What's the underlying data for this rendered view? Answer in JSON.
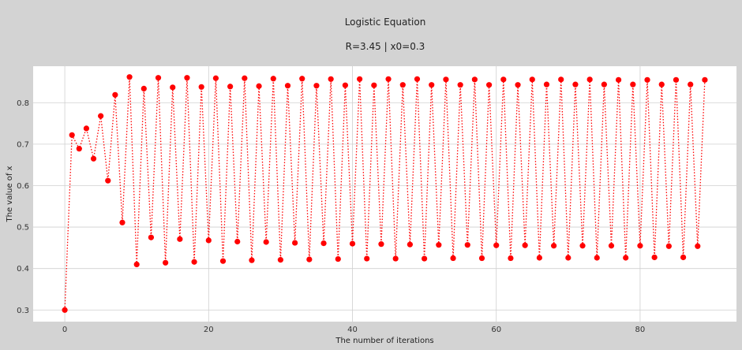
{
  "chart_data": {
    "type": "line",
    "title": "Logistic Equation",
    "subtitle": "R=3.45  |  x0=0.3",
    "xlabel": "The number of iterations",
    "ylabel": "The value of x",
    "xlim": [
      -4.4,
      93.4
    ],
    "ylim": [
      0.272,
      0.888
    ],
    "xticks": [
      0,
      20,
      40,
      60,
      80
    ],
    "yticks": [
      0.3,
      0.4,
      0.5,
      0.6,
      0.7,
      0.8
    ],
    "grid": true,
    "line_style": "dotted",
    "marker": "circle",
    "series_color": "#ff0000",
    "x": [
      0,
      1,
      2,
      3,
      4,
      5,
      6,
      7,
      8,
      9,
      10,
      11,
      12,
      13,
      14,
      15,
      16,
      17,
      18,
      19,
      20,
      21,
      22,
      23,
      24,
      25,
      26,
      27,
      28,
      29,
      30,
      31,
      32,
      33,
      34,
      35,
      36,
      37,
      38,
      39,
      40,
      41,
      42,
      43,
      44,
      45,
      46,
      47,
      48,
      49,
      50,
      51,
      52,
      53,
      54,
      55,
      56,
      57,
      58,
      59,
      60,
      61,
      62,
      63,
      64,
      65,
      66,
      67,
      68,
      69,
      70,
      71,
      72,
      73,
      74,
      75,
      76,
      77,
      78,
      79,
      80,
      81,
      82,
      83,
      84,
      85,
      86,
      87,
      88,
      89
    ],
    "y": [
      0.3,
      0.722,
      0.689,
      0.738,
      0.665,
      0.768,
      0.612,
      0.819,
      0.511,
      0.862,
      0.41,
      0.834,
      0.475,
      0.86,
      0.414,
      0.837,
      0.471,
      0.86,
      0.416,
      0.838,
      0.468,
      0.859,
      0.418,
      0.839,
      0.465,
      0.859,
      0.42,
      0.84,
      0.464,
      0.858,
      0.421,
      0.841,
      0.462,
      0.858,
      0.422,
      0.841,
      0.461,
      0.857,
      0.423,
      0.842,
      0.46,
      0.857,
      0.424,
      0.842,
      0.459,
      0.857,
      0.424,
      0.843,
      0.458,
      0.857,
      0.424,
      0.843,
      0.457,
      0.856,
      0.425,
      0.843,
      0.457,
      0.856,
      0.425,
      0.843,
      0.456,
      0.856,
      0.425,
      0.843,
      0.456,
      0.856,
      0.426,
      0.844,
      0.455,
      0.856,
      0.426,
      0.844,
      0.455,
      0.856,
      0.426,
      0.844,
      0.455,
      0.855,
      0.426,
      0.844,
      0.455,
      0.855,
      0.427,
      0.844,
      0.454,
      0.855,
      0.427,
      0.844,
      0.454,
      0.855
    ]
  }
}
